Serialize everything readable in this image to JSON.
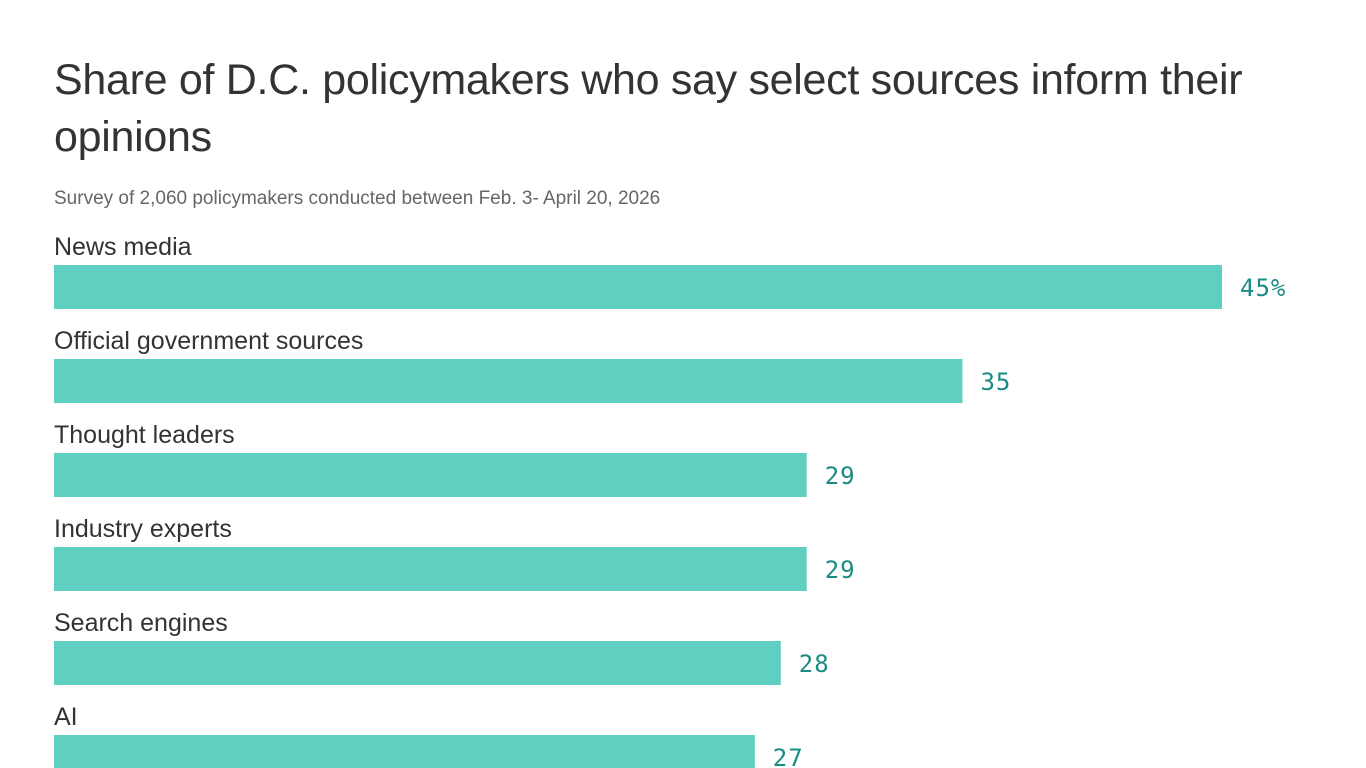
{
  "title": "Share of D.C. policymakers who say select sources inform their opinions",
  "subtitle": "Survey of 2,060 policymakers conducted between Feb. 3- April 20, 2026",
  "colors": {
    "bar": "#5ecfc0",
    "value_label": "#1a8c84"
  },
  "chart_data": {
    "type": "bar",
    "orientation": "horizontal",
    "title": "Share of D.C. policymakers who say select sources inform their opinions",
    "subtitle": "Survey of 2,060 policymakers conducted between Feb. 3- April 20, 2026",
    "categories": [
      "News media",
      "Official government sources",
      "Thought leaders",
      "Industry experts",
      "Search engines",
      "AI"
    ],
    "values": [
      45,
      35,
      29,
      29,
      28,
      27
    ],
    "value_labels": [
      "45%",
      "35",
      "29",
      "29",
      "28",
      "27"
    ],
    "xlim": [
      0,
      45
    ],
    "grid": false,
    "legend": "none"
  }
}
